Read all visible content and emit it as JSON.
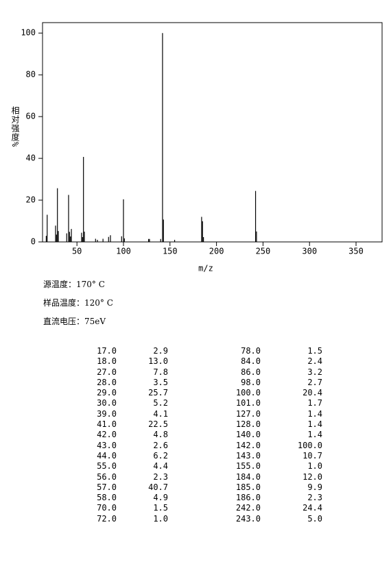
{
  "chart_data": {
    "type": "bar",
    "x_label": "m/z",
    "y_label": "相对强度%",
    "x": [
      17,
      18,
      27,
      28,
      29,
      30,
      39,
      41,
      42,
      43,
      44,
      55,
      56,
      57,
      58,
      70,
      72,
      78,
      84,
      86,
      98,
      100,
      101,
      127,
      128,
      140,
      142,
      143,
      155,
      184,
      185,
      186,
      242,
      243
    ],
    "values": [
      2.9,
      13.0,
      7.8,
      3.5,
      25.7,
      5.2,
      4.1,
      22.5,
      4.8,
      2.6,
      6.2,
      4.4,
      2.3,
      40.7,
      4.9,
      1.5,
      1.0,
      1.5,
      2.4,
      3.2,
      2.7,
      20.4,
      1.7,
      1.4,
      1.4,
      1.4,
      100.0,
      10.7,
      1.0,
      12.0,
      9.9,
      2.3,
      24.4,
      5.0
    ],
    "color": "#000000",
    "xlim": [
      13,
      378
    ],
    "ylim": [
      0,
      105
    ],
    "xticks": [
      50,
      100,
      150,
      200,
      250,
      300,
      350
    ],
    "yticks": [
      0,
      20,
      40,
      60,
      80,
      100
    ]
  },
  "conditions": [
    "源温度：170° C",
    "样品温度：120° C",
    "直流电压：75eV"
  ],
  "table": {
    "rows": [
      [
        "17.0",
        "2.9",
        "78.0",
        "1.5"
      ],
      [
        "18.0",
        "13.0",
        "84.0",
        "2.4"
      ],
      [
        "27.0",
        "7.8",
        "86.0",
        "3.2"
      ],
      [
        "28.0",
        "3.5",
        "98.0",
        "2.7"
      ],
      [
        "29.0",
        "25.7",
        "100.0",
        "20.4"
      ],
      [
        "30.0",
        "5.2",
        "101.0",
        "1.7"
      ],
      [
        "39.0",
        "4.1",
        "127.0",
        "1.4"
      ],
      [
        "41.0",
        "22.5",
        "128.0",
        "1.4"
      ],
      [
        "42.0",
        "4.8",
        "140.0",
        "1.4"
      ],
      [
        "43.0",
        "2.6",
        "142.0",
        "100.0"
      ],
      [
        "44.0",
        "6.2",
        "143.0",
        "10.7"
      ],
      [
        "55.0",
        "4.4",
        "155.0",
        "1.0"
      ],
      [
        "56.0",
        "2.3",
        "184.0",
        "12.0"
      ],
      [
        "57.0",
        "40.7",
        "185.0",
        "9.9"
      ],
      [
        "58.0",
        "4.9",
        "186.0",
        "2.3"
      ],
      [
        "70.0",
        "1.5",
        "242.0",
        "24.4"
      ],
      [
        "72.0",
        "1.0",
        "243.0",
        "5.0"
      ]
    ]
  }
}
